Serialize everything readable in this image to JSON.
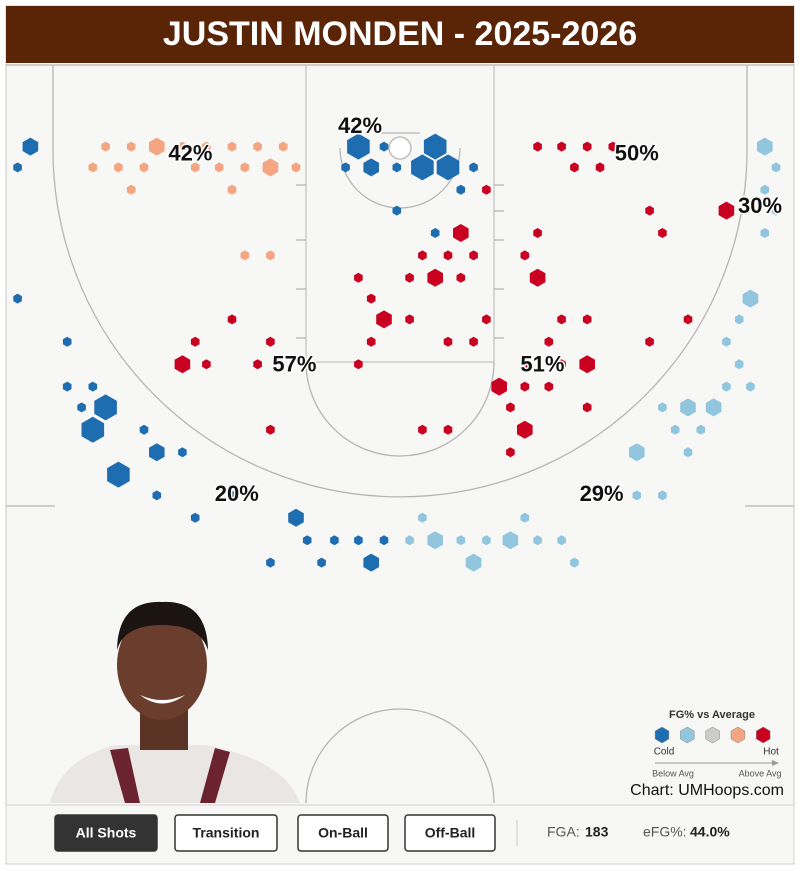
{
  "header": {
    "title": "JUSTIN MONDEN - 2025-2026"
  },
  "zones": [
    {
      "label": "42%",
      "x": -13.1,
      "y": 5.6
    },
    {
      "label": "42%",
      "x": -2.5,
      "y": 3.9
    },
    {
      "label": "50%",
      "x": 14.8,
      "y": 5.6
    },
    {
      "label": "30%",
      "x": 22.5,
      "y": 8.9
    },
    {
      "label": "57%",
      "x": -6.6,
      "y": 18.8
    },
    {
      "label": "51%",
      "x": 8.9,
      "y": 18.8
    },
    {
      "label": "20%",
      "x": -10.2,
      "y": 26.9
    },
    {
      "label": "29%",
      "x": 12.6,
      "y": 26.9
    }
  ],
  "hexes": [
    [
      -23.1,
      5.1,
      2,
      0
    ],
    [
      -23.9,
      6.4,
      1,
      0
    ],
    [
      -23.9,
      14.6,
      1,
      0
    ],
    [
      -18.4,
      5.1,
      1,
      3
    ],
    [
      -16.8,
      5.1,
      1,
      3
    ],
    [
      -15.2,
      5.1,
      2,
      3
    ],
    [
      -13.6,
      5.1,
      1,
      3
    ],
    [
      -12.1,
      5.1,
      1,
      3
    ],
    [
      -10.5,
      5.1,
      1,
      3
    ],
    [
      -8.9,
      5.1,
      1,
      3
    ],
    [
      -7.3,
      5.1,
      1,
      3
    ],
    [
      -19.2,
      6.4,
      1,
      3
    ],
    [
      -17.6,
      6.4,
      1,
      3
    ],
    [
      -16,
      6.4,
      1,
      3
    ],
    [
      -12.8,
      6.4,
      1,
      3
    ],
    [
      -11.3,
      6.4,
      1,
      3
    ],
    [
      -9.7,
      6.4,
      1,
      3
    ],
    [
      -8.1,
      6.4,
      2,
      3
    ],
    [
      -6.5,
      6.4,
      1,
      3
    ],
    [
      -16.8,
      7.8,
      1,
      3
    ],
    [
      -10.5,
      7.8,
      1,
      3
    ],
    [
      -9.7,
      11.9,
      1,
      3
    ],
    [
      -8.1,
      11.9,
      1,
      3
    ],
    [
      -2.6,
      5.1,
      3,
      0
    ],
    [
      -1,
      5.1,
      1,
      0
    ],
    [
      2.2,
      5.1,
      3,
      0
    ],
    [
      -1.8,
      6.4,
      2,
      0
    ],
    [
      -0.2,
      6.4,
      1,
      0
    ],
    [
      1.4,
      6.4,
      3,
      0
    ],
    [
      3,
      6.4,
      3,
      0
    ],
    [
      -3.4,
      6.4,
      1,
      0
    ],
    [
      4.6,
      6.4,
      1,
      0
    ],
    [
      3.8,
      7.8,
      1,
      0
    ],
    [
      -0.2,
      9.1,
      1,
      0
    ],
    [
      2.2,
      10.5,
      1,
      0
    ],
    [
      8.6,
      5.1,
      1,
      4
    ],
    [
      10.1,
      5.1,
      1,
      4
    ],
    [
      11.7,
      5.1,
      1,
      4
    ],
    [
      13.3,
      5.1,
      1,
      4
    ],
    [
      10.9,
      6.4,
      1,
      4
    ],
    [
      12.5,
      6.4,
      1,
      4
    ],
    [
      5.4,
      7.8,
      1,
      4
    ],
    [
      15.6,
      9.1,
      1,
      4
    ],
    [
      20.4,
      9.1,
      2,
      4
    ],
    [
      3.8,
      10.5,
      2,
      4
    ],
    [
      8.6,
      10.5,
      1,
      4
    ],
    [
      16.4,
      10.5,
      1,
      4
    ],
    [
      1.4,
      11.9,
      1,
      4
    ],
    [
      3,
      11.9,
      1,
      4
    ],
    [
      4.6,
      11.9,
      1,
      4
    ],
    [
      7.8,
      11.9,
      1,
      4
    ],
    [
      -2.6,
      13.3,
      1,
      4
    ],
    [
      0.6,
      13.3,
      1,
      4
    ],
    [
      2.2,
      13.3,
      2,
      4
    ],
    [
      3.8,
      13.3,
      1,
      4
    ],
    [
      8.6,
      13.3,
      2,
      4
    ],
    [
      -1.8,
      14.6,
      1,
      4
    ],
    [
      -1,
      15.9,
      2,
      4
    ],
    [
      0.6,
      15.9,
      1,
      4
    ],
    [
      -10.5,
      15.9,
      1,
      4
    ],
    [
      5.4,
      15.9,
      1,
      4
    ],
    [
      10.1,
      15.9,
      1,
      4
    ],
    [
      11.7,
      15.9,
      1,
      4
    ],
    [
      18,
      15.9,
      1,
      4
    ],
    [
      -12.8,
      17.3,
      1,
      4
    ],
    [
      -8.1,
      17.3,
      1,
      4
    ],
    [
      -1.8,
      17.3,
      1,
      4
    ],
    [
      3,
      17.3,
      1,
      4
    ],
    [
      4.6,
      17.3,
      1,
      4
    ],
    [
      9.3,
      17.3,
      1,
      4
    ],
    [
      15.6,
      17.3,
      1,
      4
    ],
    [
      -13.6,
      18.7,
      2,
      4
    ],
    [
      -12.1,
      18.7,
      1,
      4
    ],
    [
      -8.9,
      18.7,
      1,
      4
    ],
    [
      -2.6,
      18.7,
      1,
      4
    ],
    [
      7.8,
      18.7,
      1,
      4
    ],
    [
      10.1,
      18.7,
      1,
      4
    ],
    [
      11.7,
      18.7,
      2,
      4
    ],
    [
      6.2,
      20.1,
      2,
      4
    ],
    [
      7.8,
      20.1,
      1,
      4
    ],
    [
      9.3,
      20.1,
      1,
      4
    ],
    [
      6.9,
      21.4,
      1,
      4
    ],
    [
      11.7,
      21.4,
      1,
      4
    ],
    [
      -8.1,
      22.8,
      1,
      4
    ],
    [
      1.4,
      22.8,
      1,
      4
    ],
    [
      3,
      22.8,
      1,
      4
    ],
    [
      7.8,
      22.8,
      2,
      4
    ],
    [
      6.9,
      24.2,
      1,
      4
    ],
    [
      22.8,
      5.1,
      2,
      1
    ],
    [
      23.5,
      6.4,
      1,
      1
    ],
    [
      22.8,
      7.8,
      1,
      1
    ],
    [
      23.5,
      9.1,
      1,
      1
    ],
    [
      22.8,
      10.5,
      1,
      1
    ],
    [
      21.9,
      14.6,
      2,
      1
    ],
    [
      21.2,
      15.9,
      1,
      1
    ],
    [
      20.4,
      17.3,
      1,
      1
    ],
    [
      21.2,
      18.7,
      1,
      1
    ],
    [
      21.9,
      20.1,
      1,
      1
    ],
    [
      20.4,
      20.1,
      1,
      1
    ],
    [
      19.6,
      21.4,
      2,
      1
    ],
    [
      18,
      21.4,
      2,
      1
    ],
    [
      16.4,
      21.4,
      1,
      1
    ],
    [
      17.2,
      22.8,
      1,
      1
    ],
    [
      18.8,
      22.8,
      1,
      1
    ],
    [
      14.8,
      24.2,
      2,
      1
    ],
    [
      18,
      24.2,
      1,
      1
    ],
    [
      14.8,
      26.9,
      1,
      1
    ],
    [
      16.4,
      26.9,
      1,
      1
    ],
    [
      1.4,
      28.3,
      1,
      1
    ],
    [
      7.8,
      28.3,
      1,
      1
    ],
    [
      0.6,
      29.7,
      1,
      1
    ],
    [
      2.2,
      29.7,
      2,
      1
    ],
    [
      3.8,
      29.7,
      1,
      1
    ],
    [
      5.4,
      29.7,
      1,
      1
    ],
    [
      6.9,
      29.7,
      2,
      1
    ],
    [
      8.6,
      29.7,
      1,
      1
    ],
    [
      10.1,
      29.7,
      1,
      1
    ],
    [
      4.6,
      31.1,
      2,
      1
    ],
    [
      10.9,
      31.1,
      1,
      1
    ],
    [
      -20.8,
      17.3,
      1,
      0
    ],
    [
      -20.8,
      20.1,
      1,
      0
    ],
    [
      -19.2,
      20.1,
      1,
      0
    ],
    [
      -19.9,
      21.4,
      1,
      0
    ],
    [
      -18.4,
      21.4,
      3,
      0
    ],
    [
      -19.2,
      22.8,
      3,
      0
    ],
    [
      -16,
      22.8,
      1,
      0
    ],
    [
      -15.2,
      24.2,
      2,
      0
    ],
    [
      -13.6,
      24.2,
      1,
      0
    ],
    [
      -17.6,
      25.6,
      3,
      0
    ],
    [
      -15.2,
      26.9,
      1,
      0
    ],
    [
      -12.8,
      28.3,
      1,
      0
    ],
    [
      -6.5,
      28.3,
      2,
      0
    ],
    [
      -5.8,
      29.7,
      1,
      0
    ],
    [
      -4.1,
      29.7,
      1,
      0
    ],
    [
      -2.6,
      29.7,
      1,
      0
    ],
    [
      -1,
      29.7,
      1,
      0
    ],
    [
      -8.1,
      31.1,
      1,
      0
    ],
    [
      -4.9,
      31.1,
      1,
      0
    ],
    [
      -1.8,
      31.1,
      2,
      0
    ],
    [
      -10.5,
      26.9,
      1,
      0
    ]
  ],
  "legend": {
    "title": "FG% vs Average",
    "colors": [
      "#1f6db1",
      "#92c5de",
      "#cccccc",
      "#f4a582",
      "#ca0020"
    ],
    "cold": "Cold",
    "hot": "Hot",
    "below": "Below Avg",
    "above": "Above Avg"
  },
  "credit": "Chart: UMHoops.com",
  "toolbar": {
    "buttons": [
      "All Shots",
      "Transition",
      "On-Ball",
      "Off-Ball"
    ],
    "fga_label": "FGA:",
    "fga": "183",
    "efg_label": "eFG%:",
    "efg": "44.0%"
  }
}
